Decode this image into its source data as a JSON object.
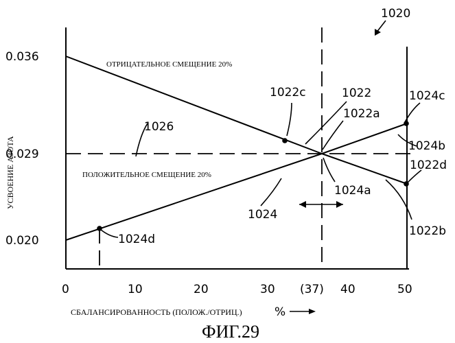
{
  "figure_label": "ФИГ.29",
  "figure_ref": "1020",
  "ylabel": "УСВОЕНИЕ АЗОТА",
  "xlabel": "СБАЛАНСИРОВАННОСТЬ (ПОЛОЖ./ОТРИЦ.)",
  "xlabel_unit": "%",
  "x_ticks": [
    "0",
    "10",
    "20",
    "30",
    "(37)",
    "40",
    "50"
  ],
  "y_ticks": [
    "0.036",
    "0.029",
    "0.020"
  ],
  "series_labels": {
    "negative": "ОТРИЦАТЕЛЬНОЕ СМЕЩЕНИЕ 20%",
    "positive": "ПОЛОЖИТЕЛЬНОЕ СМЕЩЕНИЕ 20%"
  },
  "refs": {
    "r1022c": "1022c",
    "r1022": "1022",
    "r1022a": "1022a",
    "r1024c": "1024c",
    "r1024b": "1024b",
    "r1026": "1026",
    "r1022d": "1022d",
    "r1024a": "1024a",
    "r1024": "1024",
    "r1022b": "1022b",
    "r1024d": "1024d"
  }
}
